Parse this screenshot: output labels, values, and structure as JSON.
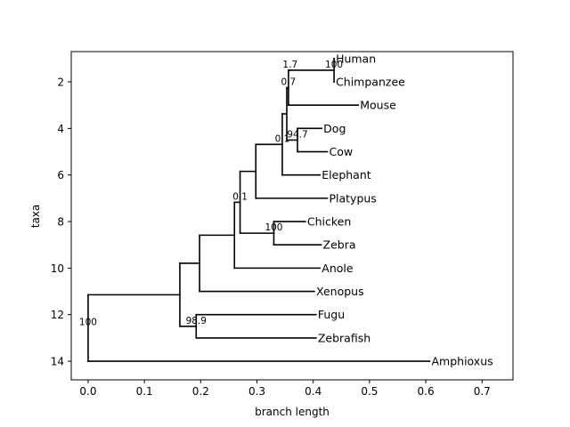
{
  "chart_data": {
    "type": "tree",
    "title": "",
    "xlabel": "branch length",
    "ylabel": "taxa",
    "xlim": [
      -0.03,
      0.755
    ],
    "ylim": [
      14.8,
      0.7
    ],
    "x_ticks": [
      0.0,
      0.1,
      0.2,
      0.3,
      0.4,
      0.5,
      0.6,
      0.7
    ],
    "x_tick_labels": [
      "0.0",
      "0.1",
      "0.2",
      "0.3",
      "0.4",
      "0.5",
      "0.6",
      "0.7"
    ],
    "y_ticks": [
      2,
      4,
      6,
      8,
      10,
      12,
      14
    ],
    "y_tick_labels": [
      "2",
      "4",
      "6",
      "8",
      "10",
      "12",
      "14"
    ],
    "leaves": [
      {
        "name": "Human",
        "label": " Human",
        "row": 1,
        "depth": 0.437
      },
      {
        "name": "Chimpanzee",
        "label": " Chimpanzee",
        "row": 2,
        "depth": 0.437
      },
      {
        "name": "Mouse",
        "label": " Mouse",
        "row": 3,
        "depth": 0.48
      },
      {
        "name": "Dog",
        "label": " Dog",
        "row": 4,
        "depth": 0.415
      },
      {
        "name": "Cow",
        "label": " Cow",
        "row": 5,
        "depth": 0.425
      },
      {
        "name": "Elephant",
        "label": " Elephant",
        "row": 6,
        "depth": 0.412
      },
      {
        "name": "Platypus",
        "label": " Platypus",
        "row": 7,
        "depth": 0.425
      },
      {
        "name": "Chicken",
        "label": " Chicken",
        "row": 8,
        "depth": 0.386
      },
      {
        "name": "Zebra",
        "label": " Zebra",
        "row": 9,
        "depth": 0.414
      },
      {
        "name": "Anole",
        "label": " Anole",
        "row": 10,
        "depth": 0.412
      },
      {
        "name": "Xenopus",
        "label": " Xenopus",
        "row": 11,
        "depth": 0.402
      },
      {
        "name": "Fugu",
        "label": " Fugu",
        "row": 12,
        "depth": 0.405
      },
      {
        "name": "Zebrafish",
        "label": " Zebrafish",
        "row": 13,
        "depth": 0.405
      },
      {
        "name": "Amphioxus",
        "label": " Amphioxus",
        "row": 14,
        "depth": 0.607
      }
    ],
    "clades": [
      {
        "id": "human-chimp",
        "depth": 0.437,
        "children": [
          "Human",
          "Chimpanzee"
        ],
        "support": "100"
      },
      {
        "id": "primates",
        "depth": 0.359,
        "children": [
          "human-chimp"
        ],
        "support": "1.7"
      },
      {
        "id": "euarchontoglires",
        "depth": 0.356,
        "children": [
          "primates",
          "Mouse"
        ],
        "support": "0.7"
      },
      {
        "id": "dog-cow",
        "depth": 0.372,
        "children": [
          "Dog",
          "Cow"
        ],
        "support": "94.7"
      },
      {
        "id": "boreoeutheria",
        "depth": 0.353,
        "children": [
          "euarchontoglires",
          "dog-cow"
        ],
        "support": ""
      },
      {
        "id": "eutheria",
        "depth": 0.345,
        "children": [
          "boreoeutheria",
          "Elephant"
        ],
        "support": "0.1"
      },
      {
        "id": "mammalia",
        "depth": 0.298,
        "children": [
          "eutheria",
          "Platypus"
        ],
        "support": ""
      },
      {
        "id": "chicken-zebra",
        "depth": 0.33,
        "children": [
          "Chicken",
          "Zebra"
        ],
        "support": "100"
      },
      {
        "id": "amniota",
        "depth": 0.27,
        "children": [
          "mammalia",
          "chicken-zebra"
        ],
        "support": "0.1"
      },
      {
        "id": "amniota-anole",
        "depth": 0.26,
        "children": [
          "amniota",
          "Anole"
        ],
        "support": ""
      },
      {
        "id": "tetrapoda",
        "depth": 0.198,
        "children": [
          "amniota-anole",
          "Xenopus"
        ],
        "support": ""
      },
      {
        "id": "teleostei",
        "depth": 0.192,
        "children": [
          "Fugu",
          "Zebrafish"
        ],
        "support": "98.9"
      },
      {
        "id": "vertebrata",
        "depth": 0.163,
        "children": [
          "tetrapoda",
          "teleostei"
        ],
        "support": ""
      },
      {
        "id": "root",
        "depth": 0.0,
        "children": [
          "vertebrata",
          "Amphioxus"
        ],
        "support": "100"
      }
    ]
  }
}
